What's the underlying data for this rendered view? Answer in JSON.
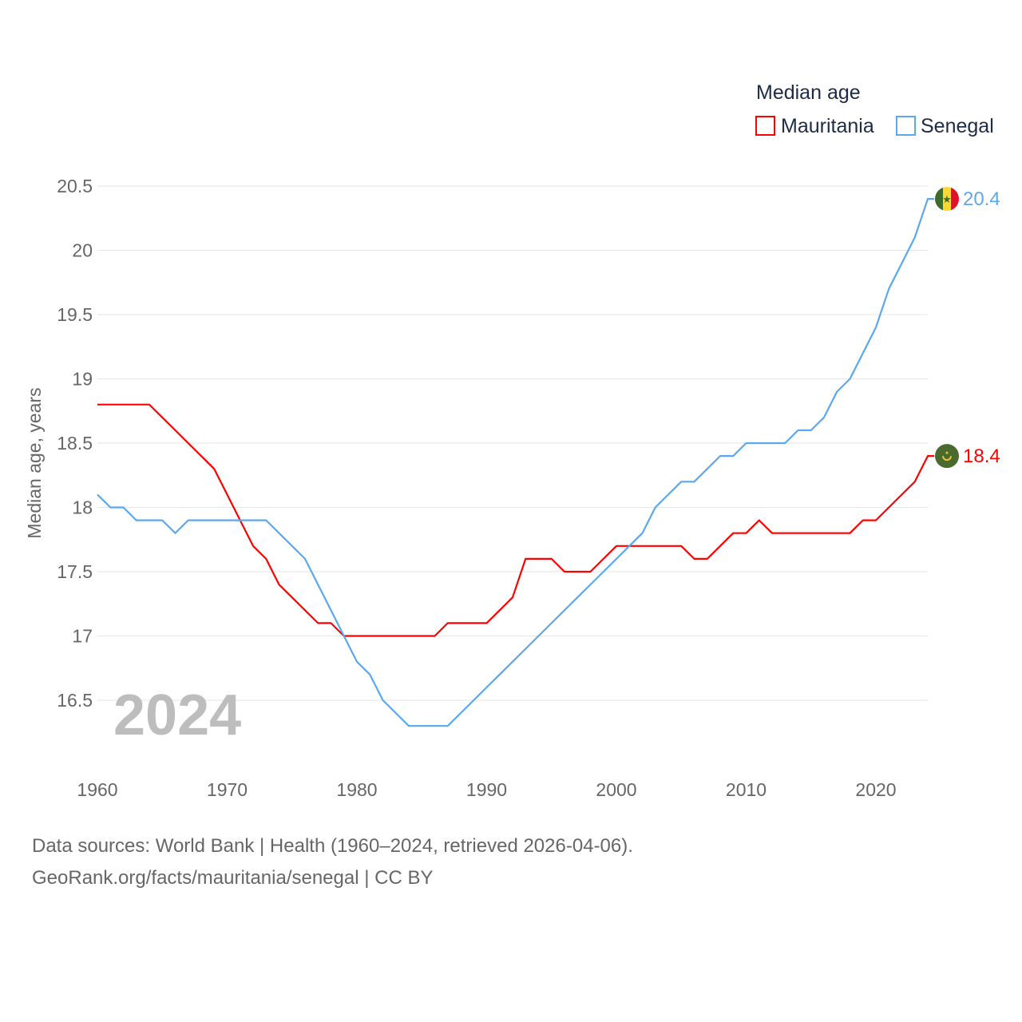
{
  "chart_data": {
    "type": "line",
    "title": "",
    "xlabel": "",
    "ylabel": "Median age, years",
    "xlim": [
      1960,
      2024
    ],
    "ylim": [
      16.0,
      20.6
    ],
    "x_ticks": [
      "1960",
      "1970",
      "1980",
      "1990",
      "2000",
      "2010",
      "2020"
    ],
    "y_ticks": [
      "16.5",
      "17",
      "17.5",
      "18",
      "18.5",
      "19",
      "19.5",
      "20",
      "20.5"
    ],
    "grid": true,
    "legend": {
      "title": "Median age",
      "placement": "top-right"
    },
    "year_watermark": "2024",
    "x": [
      1960,
      1961,
      1962,
      1963,
      1964,
      1965,
      1966,
      1967,
      1968,
      1969,
      1970,
      1971,
      1972,
      1973,
      1974,
      1975,
      1976,
      1977,
      1978,
      1979,
      1980,
      1981,
      1982,
      1983,
      1984,
      1985,
      1986,
      1987,
      1988,
      1989,
      1990,
      1991,
      1992,
      1993,
      1994,
      1995,
      1996,
      1997,
      1998,
      1999,
      2000,
      2001,
      2002,
      2003,
      2004,
      2005,
      2006,
      2007,
      2008,
      2009,
      2010,
      2011,
      2012,
      2013,
      2014,
      2015,
      2016,
      2017,
      2018,
      2019,
      2020,
      2021,
      2022,
      2023,
      2024
    ],
    "series": [
      {
        "name": "Mauritania",
        "color": "#ff0000",
        "end_label": "18.4",
        "values": [
          18.8,
          18.8,
          18.8,
          18.8,
          18.8,
          18.7,
          18.6,
          18.5,
          18.4,
          18.3,
          18.1,
          17.9,
          17.7,
          17.6,
          17.4,
          17.3,
          17.2,
          17.1,
          17.1,
          17.0,
          17.0,
          17.0,
          17.0,
          17.0,
          17.0,
          17.0,
          17.0,
          17.1,
          17.1,
          17.1,
          17.1,
          17.2,
          17.3,
          17.6,
          17.6,
          17.6,
          17.5,
          17.5,
          17.5,
          17.6,
          17.7,
          17.7,
          17.7,
          17.7,
          17.7,
          17.7,
          17.6,
          17.6,
          17.7,
          17.8,
          17.8,
          17.9,
          17.8,
          17.8,
          17.8,
          17.8,
          17.8,
          17.8,
          17.8,
          17.9,
          17.9,
          18.0,
          18.1,
          18.2,
          18.4
        ]
      },
      {
        "name": "Senegal",
        "color": "#5ba8ee",
        "end_label": "20.4",
        "values": [
          18.1,
          18.0,
          18.0,
          17.9,
          17.9,
          17.9,
          17.8,
          17.9,
          17.9,
          17.9,
          17.9,
          17.9,
          17.9,
          17.9,
          17.8,
          17.7,
          17.6,
          17.4,
          17.2,
          17.0,
          16.8,
          16.7,
          16.5,
          16.4,
          16.3,
          16.3,
          16.3,
          16.3,
          16.4,
          16.5,
          16.6,
          16.7,
          16.8,
          16.9,
          17.0,
          17.1,
          17.2,
          17.3,
          17.4,
          17.5,
          17.6,
          17.7,
          17.8,
          18.0,
          18.1,
          18.2,
          18.2,
          18.3,
          18.4,
          18.4,
          18.5,
          18.5,
          18.5,
          18.5,
          18.6,
          18.6,
          18.7,
          18.9,
          19.0,
          19.2,
          19.4,
          19.7,
          19.9,
          20.1,
          20.4
        ]
      }
    ]
  },
  "footer": {
    "line1": "Data sources: World Bank | Health (1960–2024, retrieved 2026-04-06).",
    "line2": "GeoRank.org/facts/mauritania/senegal | CC BY"
  }
}
